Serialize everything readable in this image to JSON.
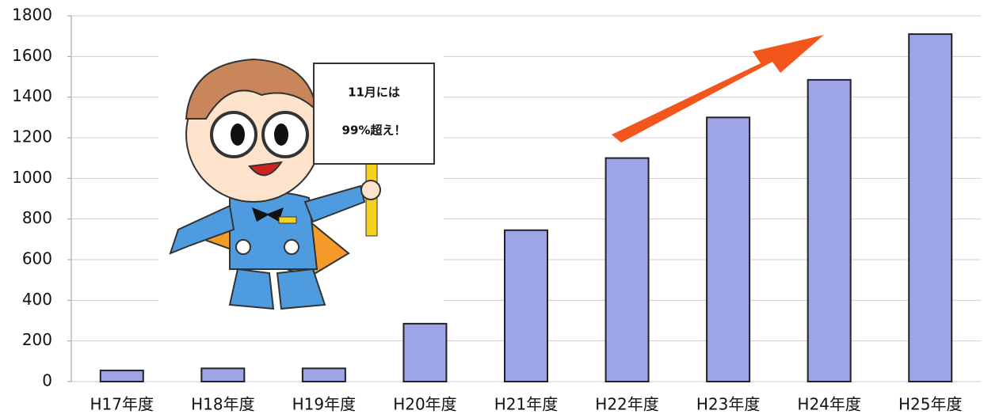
{
  "chart_data": {
    "type": "bar",
    "categories": [
      "H17年度",
      "H18年度",
      "H19年度",
      "H20年度",
      "H21年度",
      "H22年度",
      "H23年度",
      "H24年度",
      "H25年度"
    ],
    "values": [
      55,
      65,
      65,
      285,
      745,
      1100,
      1300,
      1485,
      1710
    ],
    "color": "#9da5e6",
    "ylim": [
      0,
      1800
    ],
    "yticks": [
      0,
      200,
      400,
      600,
      800,
      1000,
      1200,
      1400,
      1600,
      1800
    ],
    "grid": true,
    "annotations": [
      "11月には",
      "99%超え！"
    ]
  }
}
